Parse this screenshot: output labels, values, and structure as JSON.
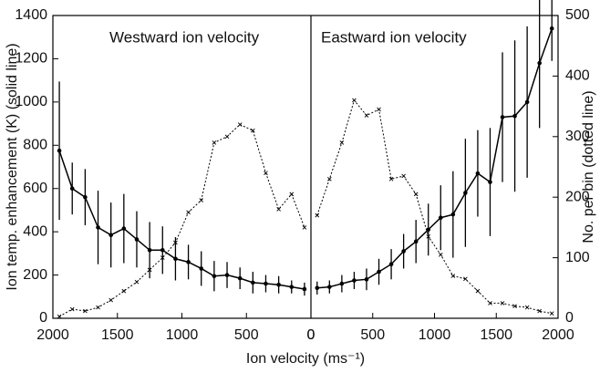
{
  "chart_data": [
    {
      "type": "line",
      "title": "Westward ion velocity",
      "xlabel": "Ion velocity (ms⁻¹)",
      "ylabel": "Ion temp. enhancement (K) (solid line)",
      "x": [
        1950,
        1850,
        1750,
        1650,
        1550,
        1450,
        1350,
        1250,
        1150,
        1050,
        950,
        850,
        750,
        650,
        550,
        450,
        350,
        250,
        150,
        50
      ],
      "xlim": [
        2000,
        0
      ],
      "xticks": [
        2000,
        1500,
        1000,
        500,
        0
      ],
      "ylim": [
        0,
        1400
      ],
      "yticks": [
        0,
        200,
        400,
        600,
        800,
        1000,
        1200,
        1400
      ],
      "y2lim": [
        0,
        500
      ],
      "series": [
        {
          "style": "solid",
          "color": "#000000",
          "axis": "y",
          "values": [
            775,
            600,
            560,
            420,
            385,
            415,
            365,
            315,
            315,
            275,
            260,
            230,
            195,
            200,
            185,
            165,
            160,
            155,
            145,
            135
          ],
          "errors": [
            320,
            120,
            130,
            170,
            150,
            160,
            130,
            130,
            110,
            100,
            80,
            80,
            70,
            60,
            50,
            50,
            40,
            40,
            30,
            30
          ]
        },
        {
          "style": "dotted",
          "color": "#000000",
          "axis": "y2",
          "values": [
            3,
            15,
            12,
            18,
            30,
            45,
            60,
            80,
            100,
            125,
            175,
            195,
            290,
            300,
            320,
            310,
            240,
            180,
            205,
            150
          ]
        }
      ]
    },
    {
      "type": "line",
      "title": "Eastward ion velocity",
      "y2label": "No. per bin (dotted line)",
      "x": [
        50,
        150,
        250,
        350,
        450,
        550,
        650,
        750,
        850,
        950,
        1050,
        1150,
        1250,
        1350,
        1450,
        1550,
        1650,
        1750,
        1850,
        1950
      ],
      "xlim": [
        0,
        2000
      ],
      "xticks": [
        0,
        500,
        1000,
        1500,
        2000
      ],
      "ylim": [
        0,
        1400
      ],
      "y2lim": [
        0,
        500
      ],
      "y2ticks": [
        0,
        100,
        200,
        300,
        400,
        500
      ],
      "series": [
        {
          "style": "solid",
          "color": "#000000",
          "axis": "y",
          "values": [
            140,
            145,
            160,
            175,
            180,
            215,
            250,
            310,
            355,
            410,
            465,
            480,
            580,
            670,
            630,
            930,
            935,
            1000,
            1180,
            1340
          ],
          "errors": [
            30,
            30,
            40,
            40,
            50,
            60,
            70,
            80,
            100,
            120,
            150,
            200,
            250,
            200,
            250,
            300,
            350,
            350,
            300,
            150
          ]
        },
        {
          "style": "dotted",
          "color": "#000000",
          "axis": "y2",
          "values": [
            170,
            230,
            290,
            360,
            335,
            345,
            230,
            235,
            205,
            135,
            105,
            70,
            65,
            45,
            25,
            25,
            20,
            18,
            12,
            8
          ]
        }
      ]
    }
  ]
}
